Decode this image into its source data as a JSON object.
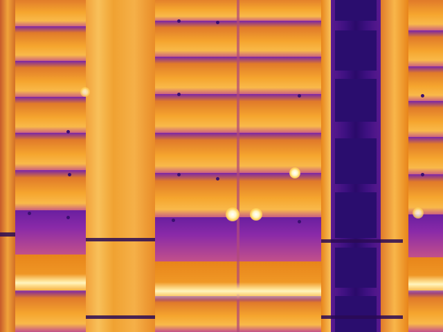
{
  "image": {
    "subject": "thermal-camera-view",
    "palette": [
      "#2a0a55",
      "#5a1a90",
      "#c2508a",
      "#e07a2a",
      "#f5a52e",
      "#f9b94a",
      "#fff4c0"
    ]
  }
}
